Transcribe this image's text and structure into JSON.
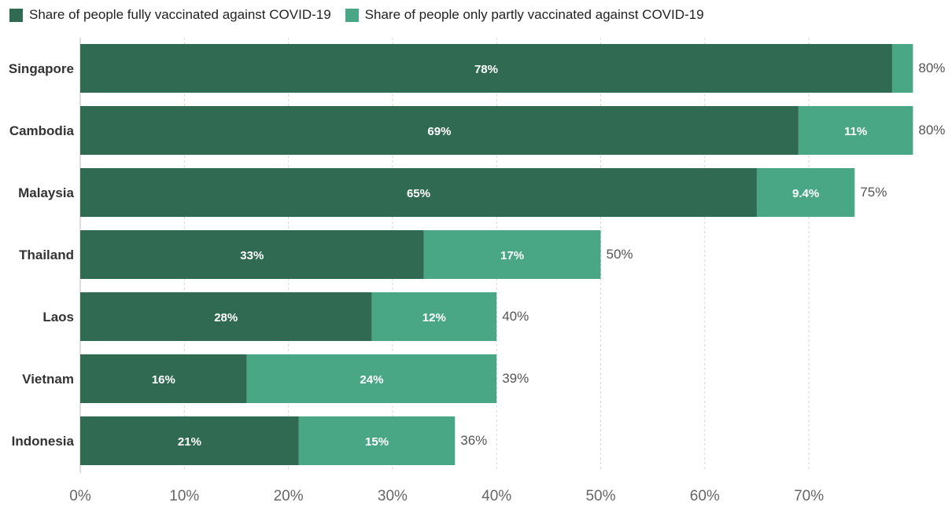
{
  "legend": {
    "fully": "Share of people fully vaccinated against COVID-19",
    "partly": "Share of people only partly vaccinated against COVID-19"
  },
  "colors": {
    "fully": "#316a52",
    "partly": "#4aa786",
    "grid": "#d6d6d6",
    "axis_text": "#666666",
    "category_text": "#333333",
    "total_text": "#555555"
  },
  "chart_data": {
    "type": "bar",
    "orientation": "horizontal",
    "stacked": true,
    "categories": [
      "Singapore",
      "Cambodia",
      "Malaysia",
      "Thailand",
      "Laos",
      "Vietnam",
      "Indonesia"
    ],
    "series": [
      {
        "name": "Share of people fully vaccinated against COVID-19",
        "values": [
          78,
          69,
          65,
          33,
          28,
          16,
          21
        ],
        "labels": [
          "78%",
          "69%",
          "65%",
          "33%",
          "28%",
          "16%",
          "21%"
        ]
      },
      {
        "name": "Share of people only partly vaccinated against COVID-19",
        "values": [
          2,
          11,
          9.4,
          17,
          12,
          24,
          15
        ],
        "labels": [
          "",
          "11%",
          "9.4%",
          "17%",
          "12%",
          "24%",
          "15%"
        ]
      }
    ],
    "totals": [
      80,
      80,
      75,
      50,
      40,
      39,
      36
    ],
    "total_labels": [
      "80%",
      "80%",
      "75%",
      "50%",
      "40%",
      "39%",
      "36%"
    ],
    "xlim": [
      0,
      80
    ],
    "xticks": [
      0,
      10,
      20,
      30,
      40,
      50,
      60,
      70
    ],
    "xtick_labels": [
      "0%",
      "10%",
      "20%",
      "30%",
      "40%",
      "50%",
      "60%",
      "70%"
    ],
    "grid": true,
    "legend_position": "top-left"
  }
}
